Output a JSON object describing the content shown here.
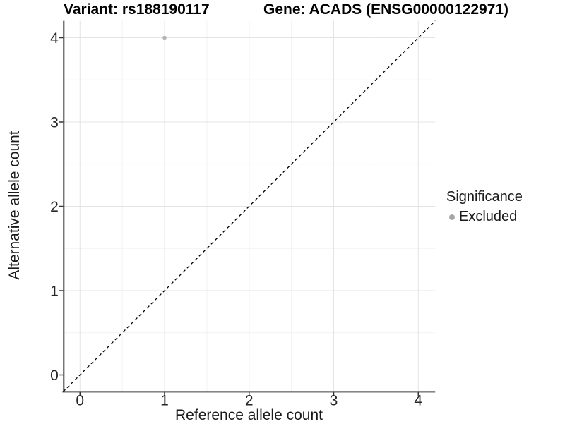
{
  "titles": {
    "variant": "Variant: rs188190117",
    "gene": "Gene: ACADS (ENSG00000122971)"
  },
  "chart_data": {
    "type": "scatter",
    "title_left": "Variant: rs188190117",
    "title_right": "Gene: ACADS (ENSG00000122971)",
    "xlabel": "Reference allele count",
    "ylabel": "Alternative allele count",
    "xlim": [
      -0.2,
      4.2
    ],
    "ylim": [
      -0.2,
      4.2
    ],
    "xticks": [
      0,
      1,
      2,
      3,
      4
    ],
    "yticks": [
      0,
      1,
      2,
      3,
      4
    ],
    "grid": {
      "major": true,
      "minor": true
    },
    "legend": {
      "title": "Significance",
      "position": "right",
      "entries": [
        "Excluded"
      ]
    },
    "identity_line": {
      "style": "dashed",
      "from": [
        -0.2,
        -0.2
      ],
      "to": [
        4.2,
        4.2
      ],
      "color": "#000000"
    },
    "series": [
      {
        "name": "Excluded",
        "color": "#b3b3b3",
        "points": [
          [
            1,
            4
          ]
        ]
      }
    ]
  },
  "style": {
    "background": "#ffffff",
    "grid_major": "#e4e4e4",
    "grid_minor": "#f2f2f2",
    "axis_line": "#3c3c3c",
    "tick": "#333333",
    "tick_label": "#262626",
    "legend_dot": "#a6a6a6",
    "point": "#b3b3b3"
  }
}
